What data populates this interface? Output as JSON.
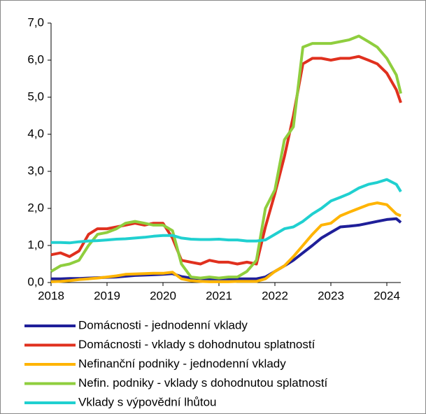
{
  "chart_data": {
    "type": "line",
    "x": [
      2018,
      2018.17,
      2018.33,
      2018.5,
      2018.67,
      2018.83,
      2019,
      2019.17,
      2019.33,
      2019.5,
      2019.67,
      2019.83,
      2020,
      2020.17,
      2020.33,
      2020.5,
      2020.67,
      2020.83,
      2021,
      2021.17,
      2021.33,
      2021.5,
      2021.67,
      2021.83,
      2022,
      2022.17,
      2022.33,
      2022.5,
      2022.67,
      2022.83,
      2023,
      2023.17,
      2023.33,
      2023.5,
      2023.67,
      2023.83,
      2024,
      2024.17,
      2024.25
    ],
    "series": [
      {
        "name": "Domácnosti - jednodenní vklady",
        "color": "#1f1f99",
        "values": [
          0.1,
          0.1,
          0.11,
          0.11,
          0.12,
          0.13,
          0.14,
          0.15,
          0.17,
          0.19,
          0.2,
          0.21,
          0.22,
          0.24,
          0.16,
          0.12,
          0.11,
          0.1,
          0.1,
          0.1,
          0.1,
          0.1,
          0.1,
          0.15,
          0.3,
          0.45,
          0.6,
          0.8,
          1.0,
          1.2,
          1.35,
          1.5,
          1.52,
          1.55,
          1.6,
          1.65,
          1.7,
          1.72,
          1.62
        ]
      },
      {
        "name": "Domácnosti - vklady s dohodnutou splatností",
        "color": "#e0301e",
        "values": [
          0.75,
          0.8,
          0.7,
          0.85,
          1.3,
          1.45,
          1.45,
          1.5,
          1.55,
          1.6,
          1.55,
          1.6,
          1.6,
          1.2,
          0.6,
          0.55,
          0.5,
          0.6,
          0.55,
          0.55,
          0.5,
          0.55,
          0.5,
          1.5,
          2.4,
          3.4,
          4.5,
          5.9,
          6.05,
          6.05,
          6.0,
          6.05,
          6.05,
          6.1,
          6.0,
          5.9,
          5.65,
          5.2,
          4.85
        ]
      },
      {
        "name": "Nefinanční podniky - jednodenní vklady",
        "color": "#ffb400",
        "values": [
          0.02,
          0.03,
          0.05,
          0.08,
          0.1,
          0.12,
          0.15,
          0.18,
          0.22,
          0.23,
          0.24,
          0.25,
          0.25,
          0.28,
          0.1,
          0.05,
          0.03,
          0.02,
          0.02,
          0.02,
          0.03,
          0.03,
          0.03,
          0.1,
          0.3,
          0.45,
          0.7,
          1.0,
          1.3,
          1.55,
          1.6,
          1.8,
          1.9,
          2.0,
          2.1,
          2.15,
          2.1,
          1.85,
          1.8
        ]
      },
      {
        "name": "Nefin. podniky - vklady s dohodnutou splatností",
        "color": "#8fce3e",
        "values": [
          0.3,
          0.45,
          0.5,
          0.6,
          1.0,
          1.3,
          1.35,
          1.45,
          1.6,
          1.65,
          1.6,
          1.55,
          1.55,
          1.4,
          0.5,
          0.15,
          0.12,
          0.15,
          0.12,
          0.15,
          0.15,
          0.3,
          0.6,
          2.0,
          2.5,
          3.85,
          4.2,
          6.35,
          6.45,
          6.45,
          6.45,
          6.5,
          6.55,
          6.65,
          6.5,
          6.35,
          6.05,
          5.6,
          5.1
        ]
      },
      {
        "name": "Vklady s výpovědní lhůtou",
        "color": "#20d0d0",
        "values": [
          1.08,
          1.08,
          1.07,
          1.1,
          1.12,
          1.13,
          1.15,
          1.17,
          1.18,
          1.2,
          1.22,
          1.25,
          1.27,
          1.27,
          1.2,
          1.17,
          1.16,
          1.16,
          1.17,
          1.15,
          1.15,
          1.12,
          1.12,
          1.15,
          1.3,
          1.45,
          1.5,
          1.65,
          1.85,
          2.0,
          2.2,
          2.3,
          2.4,
          2.55,
          2.65,
          2.7,
          2.78,
          2.65,
          2.45
        ]
      }
    ],
    "xlim": [
      2018,
      2024.25
    ],
    "xticks": [
      2018,
      2019,
      2020,
      2021,
      2022,
      2023,
      2024
    ],
    "ylim": [
      0,
      7
    ],
    "yticks": [
      {
        "value": 0,
        "label": "0,0"
      },
      {
        "value": 1,
        "label": "1,0"
      },
      {
        "value": 2,
        "label": "2,0"
      },
      {
        "value": 3,
        "label": "3,0"
      },
      {
        "value": 4,
        "label": "4,0"
      },
      {
        "value": 5,
        "label": "5,0"
      },
      {
        "value": 6,
        "label": "6,0"
      },
      {
        "value": 7,
        "label": "7,0"
      }
    ],
    "grid": false,
    "legend": "bottom"
  }
}
